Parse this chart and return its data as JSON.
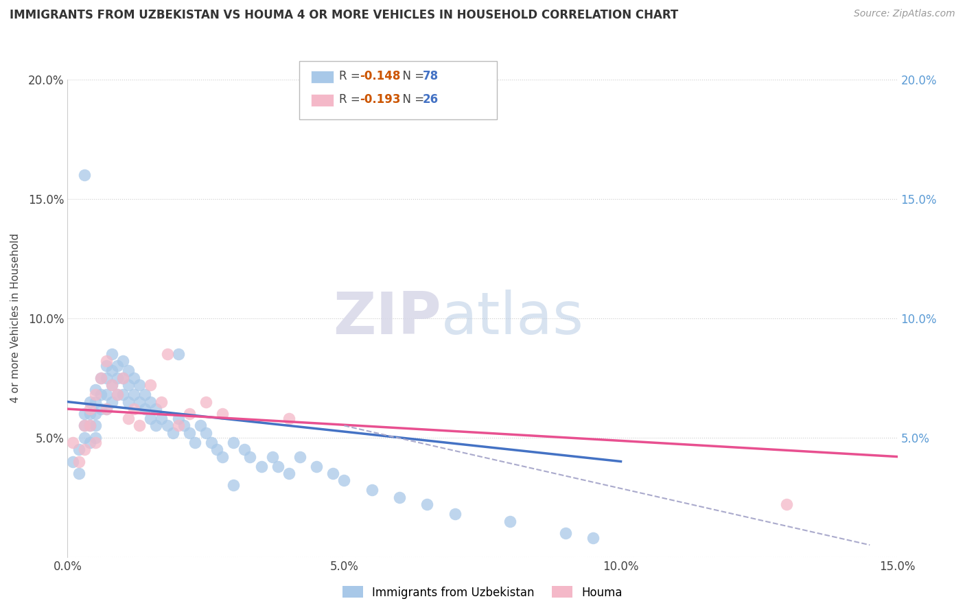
{
  "title": "IMMIGRANTS FROM UZBEKISTAN VS HOUMA 4 OR MORE VEHICLES IN HOUSEHOLD CORRELATION CHART",
  "source": "Source: ZipAtlas.com",
  "ylabel": "4 or more Vehicles in Household",
  "xlim": [
    0.0,
    0.15
  ],
  "ylim": [
    0.0,
    0.2
  ],
  "xtick_labels": [
    "0.0%",
    "5.0%",
    "10.0%",
    "15.0%"
  ],
  "xtick_vals": [
    0.0,
    0.05,
    0.1,
    0.15
  ],
  "ytick_labels_left": [
    "",
    "5.0%",
    "10.0%",
    "15.0%",
    "20.0%"
  ],
  "ytick_vals": [
    0.0,
    0.05,
    0.1,
    0.15,
    0.2
  ],
  "ytick_labels_right": [
    "",
    "5.0%",
    "10.0%",
    "15.0%",
    "20.0%"
  ],
  "legend_label1": "Immigrants from Uzbekistan",
  "legend_label2": "Houma",
  "color_blue": "#a8c8e8",
  "color_pink": "#f4b8c8",
  "color_blue_line": "#4472c4",
  "color_pink_line": "#e85090",
  "color_dashed_line": "#aaaacc",
  "watermark_zip": "ZIP",
  "watermark_atlas": "atlas",
  "blue_scatter_x": [
    0.001,
    0.002,
    0.002,
    0.003,
    0.003,
    0.003,
    0.004,
    0.004,
    0.004,
    0.004,
    0.005,
    0.005,
    0.005,
    0.005,
    0.005,
    0.006,
    0.006,
    0.006,
    0.007,
    0.007,
    0.007,
    0.007,
    0.008,
    0.008,
    0.008,
    0.008,
    0.009,
    0.009,
    0.009,
    0.01,
    0.01,
    0.01,
    0.011,
    0.011,
    0.011,
    0.012,
    0.012,
    0.013,
    0.013,
    0.014,
    0.014,
    0.015,
    0.015,
    0.016,
    0.016,
    0.017,
    0.018,
    0.019,
    0.02,
    0.021,
    0.022,
    0.023,
    0.024,
    0.025,
    0.026,
    0.027,
    0.028,
    0.03,
    0.032,
    0.033,
    0.035,
    0.037,
    0.038,
    0.04,
    0.042,
    0.045,
    0.048,
    0.05,
    0.055,
    0.06,
    0.065,
    0.07,
    0.08,
    0.09,
    0.095,
    0.003,
    0.02,
    0.03
  ],
  "blue_scatter_y": [
    0.04,
    0.035,
    0.045,
    0.06,
    0.055,
    0.05,
    0.065,
    0.06,
    0.055,
    0.048,
    0.07,
    0.065,
    0.06,
    0.055,
    0.05,
    0.075,
    0.068,
    0.062,
    0.08,
    0.075,
    0.068,
    0.062,
    0.085,
    0.078,
    0.072,
    0.065,
    0.08,
    0.075,
    0.068,
    0.082,
    0.075,
    0.068,
    0.078,
    0.072,
    0.065,
    0.075,
    0.068,
    0.072,
    0.065,
    0.068,
    0.062,
    0.065,
    0.058,
    0.062,
    0.055,
    0.058,
    0.055,
    0.052,
    0.058,
    0.055,
    0.052,
    0.048,
    0.055,
    0.052,
    0.048,
    0.045,
    0.042,
    0.048,
    0.045,
    0.042,
    0.038,
    0.042,
    0.038,
    0.035,
    0.042,
    0.038,
    0.035,
    0.032,
    0.028,
    0.025,
    0.022,
    0.018,
    0.015,
    0.01,
    0.008,
    0.16,
    0.085,
    0.03
  ],
  "pink_scatter_x": [
    0.001,
    0.002,
    0.003,
    0.003,
    0.004,
    0.004,
    0.005,
    0.005,
    0.006,
    0.007,
    0.007,
    0.008,
    0.009,
    0.01,
    0.011,
    0.012,
    0.013,
    0.015,
    0.017,
    0.018,
    0.02,
    0.022,
    0.025,
    0.028,
    0.04,
    0.13
  ],
  "pink_scatter_y": [
    0.048,
    0.04,
    0.055,
    0.045,
    0.062,
    0.055,
    0.068,
    0.048,
    0.075,
    0.082,
    0.062,
    0.072,
    0.068,
    0.075,
    0.058,
    0.062,
    0.055,
    0.072,
    0.065,
    0.085,
    0.055,
    0.06,
    0.065,
    0.06,
    0.058,
    0.022
  ],
  "blue_line_x": [
    0.0,
    0.1
  ],
  "blue_line_y": [
    0.065,
    0.04
  ],
  "pink_line_x": [
    0.0,
    0.15
  ],
  "pink_line_y": [
    0.062,
    0.042
  ],
  "dashed_line_x": [
    0.05,
    0.145
  ],
  "dashed_line_y": [
    0.055,
    0.005
  ],
  "r1": "-0.148",
  "n1": "78",
  "r2": "-0.193",
  "n2": "26"
}
